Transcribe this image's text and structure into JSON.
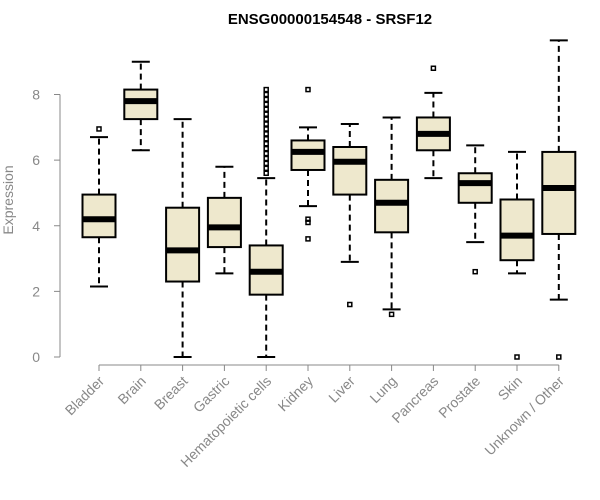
{
  "chart_data": {
    "type": "boxplot",
    "title": "ENSG00000154548 - SRSF12",
    "xlabel": "",
    "ylabel": "Expression",
    "ylim": [
      0,
      9.6
    ],
    "yticks": [
      0,
      2,
      4,
      6,
      8
    ],
    "box_color": "#EEE8CD",
    "categories": [
      "Bladder",
      "Brain",
      "Breast",
      "Gastric",
      "Hematopoietic cells",
      "Kidney",
      "Liver",
      "Lung",
      "Pancreas",
      "Prostate",
      "Skin",
      "Unknown / Other"
    ],
    "boxes": [
      {
        "label": "Bladder",
        "whislo": 2.15,
        "q1": 3.65,
        "med": 4.2,
        "q3": 4.95,
        "whishi": 6.7,
        "fliers": [
          6.95
        ]
      },
      {
        "label": "Brain",
        "whislo": 6.3,
        "q1": 7.25,
        "med": 7.8,
        "q3": 8.15,
        "whishi": 9.0,
        "fliers": []
      },
      {
        "label": "Breast",
        "whislo": 0.0,
        "q1": 2.3,
        "med": 3.25,
        "q3": 4.55,
        "whishi": 7.25,
        "fliers": []
      },
      {
        "label": "Gastric",
        "whislo": 2.55,
        "q1": 3.35,
        "med": 3.95,
        "q3": 4.85,
        "whishi": 5.8,
        "fliers": []
      },
      {
        "label": "Hematopoietic cells",
        "whislo": 0.0,
        "q1": 1.9,
        "med": 2.6,
        "q3": 3.4,
        "whishi": 5.45,
        "fliers": [
          5.6,
          5.75,
          5.9,
          6.05,
          6.2,
          6.35,
          6.5,
          6.65,
          6.8,
          6.95,
          7.1,
          7.25,
          7.4,
          7.55,
          7.7,
          7.85,
          8.0,
          8.15
        ]
      },
      {
        "label": "Kidney",
        "whislo": 4.6,
        "q1": 5.7,
        "med": 6.25,
        "q3": 6.6,
        "whishi": 7.0,
        "fliers": [
          8.15,
          4.2,
          4.1,
          3.6
        ]
      },
      {
        "label": "Liver",
        "whislo": 2.9,
        "q1": 4.95,
        "med": 5.95,
        "q3": 6.4,
        "whishi": 7.1,
        "fliers": [
          1.6
        ]
      },
      {
        "label": "Lung",
        "whislo": 1.45,
        "q1": 3.8,
        "med": 4.7,
        "q3": 5.4,
        "whishi": 7.3,
        "fliers": [
          1.3
        ]
      },
      {
        "label": "Pancreas",
        "whislo": 5.45,
        "q1": 6.3,
        "med": 6.8,
        "q3": 7.3,
        "whishi": 8.05,
        "fliers": [
          8.8
        ]
      },
      {
        "label": "Prostate",
        "whislo": 3.5,
        "q1": 4.7,
        "med": 5.3,
        "q3": 5.6,
        "whishi": 6.45,
        "fliers": [
          2.6
        ]
      },
      {
        "label": "Skin",
        "whislo": 2.55,
        "q1": 2.95,
        "med": 3.7,
        "q3": 4.8,
        "whishi": 6.25,
        "fliers": [
          0.0
        ]
      },
      {
        "label": "Unknown / Other",
        "whislo": 1.75,
        "q1": 3.75,
        "med": 5.15,
        "q3": 6.25,
        "whishi": 9.65,
        "fliers": [
          0.0
        ]
      }
    ]
  }
}
